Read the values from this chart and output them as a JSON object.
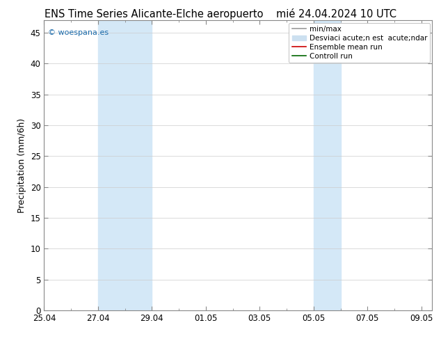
{
  "title_left": "ENS Time Series Alicante-Elche aeropuerto",
  "title_right": "mié 24.04.2024 10 UTC",
  "ylabel": "Precipitation (mm/6h)",
  "xlabel": "",
  "ylim": [
    0,
    47
  ],
  "yticks": [
    0,
    5,
    10,
    15,
    20,
    25,
    30,
    35,
    40,
    45
  ],
  "xlim": [
    0,
    14.4
  ],
  "xtick_labels": [
    "25.04",
    "27.04",
    "29.04",
    "01.05",
    "03.05",
    "05.05",
    "07.05",
    "09.05"
  ],
  "xtick_positions": [
    0,
    2,
    4,
    6,
    8,
    10,
    12,
    14
  ],
  "shaded_regions": [
    {
      "x_start": 2,
      "x_end": 4,
      "color": "#d4e8f7"
    },
    {
      "x_start": 10,
      "x_end": 11,
      "color": "#d4e8f7"
    }
  ],
  "watermark_text": "© woespana.es",
  "watermark_color": "#1a6aaa",
  "background_color": "#ffffff",
  "plot_bg_color": "#ffffff",
  "legend_label_1": "min/max",
  "legend_label_2": "Desviaci acute;n est  acute;ndar",
  "legend_label_3": "Ensemble mean run",
  "legend_label_4": "Controll run",
  "legend_color_1": "#999999",
  "legend_color_2": "#cce0f0",
  "legend_color_3": "#cc0000",
  "legend_color_4": "#006600",
  "grid_color": "#cccccc",
  "spine_color": "#888888",
  "title_fontsize": 10.5,
  "axis_fontsize": 9,
  "tick_fontsize": 8.5,
  "legend_fontsize": 7.5
}
